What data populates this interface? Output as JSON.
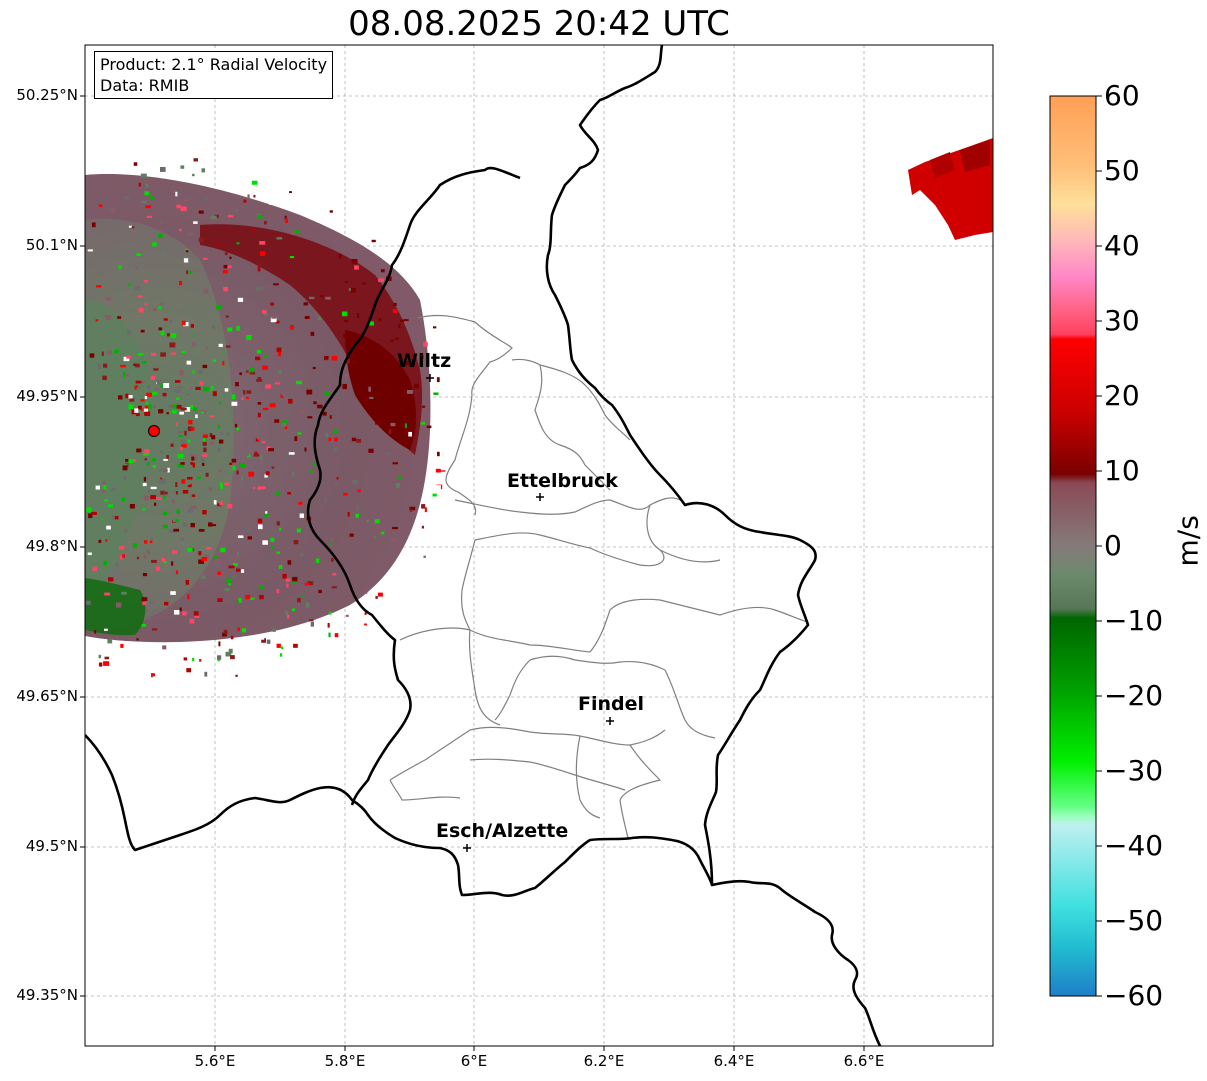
{
  "title": "08.08.2025 20:42 UTC",
  "info": {
    "product": "Product: 2.1° Radial Velocity",
    "data": "Data: RMIB"
  },
  "lat_ticks": [
    "50.25°N",
    "50.1°N",
    "49.95°N",
    "49.8°N",
    "49.65°N",
    "49.5°N",
    "49.35°N"
  ],
  "lon_ticks": [
    "5.6°E",
    "5.8°E",
    "6°E",
    "6.2°E",
    "6.4°E",
    "6.6°E"
  ],
  "colorbar": {
    "unit": "m/s",
    "ticks": [
      "60",
      "50",
      "40",
      "30",
      "20",
      "10",
      "0",
      "−10",
      "−20",
      "−30",
      "−40",
      "−50",
      "−60"
    ],
    "min": -60,
    "max": 60
  },
  "cities": [
    {
      "name": "Wiltz"
    },
    {
      "name": "Ettelbruck"
    },
    {
      "name": "Findel"
    },
    {
      "name": "Esch/Alzette"
    }
  ],
  "colors": {
    "border": "#000000",
    "canton_lines": "#808080",
    "radar_site": "#ff0000"
  }
}
